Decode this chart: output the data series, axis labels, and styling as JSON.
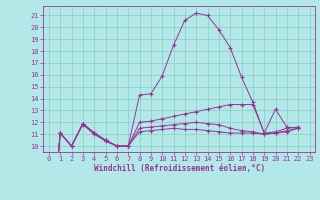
{
  "xlabel": "Windchill (Refroidissement éolien,°C)",
  "ylabel": "",
  "xlim": [
    -0.5,
    23.5
  ],
  "ylim": [
    9.5,
    21.8
  ],
  "yticks": [
    10,
    11,
    12,
    13,
    14,
    15,
    16,
    17,
    18,
    19,
    20,
    21
  ],
  "xticks": [
    0,
    1,
    2,
    3,
    4,
    5,
    6,
    7,
    8,
    9,
    10,
    11,
    12,
    13,
    14,
    15,
    16,
    17,
    18,
    19,
    20,
    21,
    22,
    23
  ],
  "bg_color": "#b3e8e8",
  "grid_color": "#88ccbb",
  "line_color": "#993399",
  "series": [
    [
      0,
      11.1,
      10.0,
      11.9,
      11.1,
      10.5,
      10.0,
      10.0,
      14.3,
      14.4,
      15.9,
      18.5,
      20.6,
      21.2,
      21.0,
      19.8,
      18.3,
      15.8,
      13.7,
      11.1,
      13.1,
      11.6,
      11.5,
      null
    ],
    [
      0,
      11.1,
      10.0,
      11.9,
      11.1,
      10.5,
      10.0,
      10.0,
      12.0,
      12.1,
      12.3,
      12.5,
      12.7,
      12.9,
      13.1,
      13.3,
      13.5,
      13.5,
      13.5,
      11.1,
      11.2,
      11.5,
      11.6,
      null
    ],
    [
      0,
      11.1,
      10.0,
      11.8,
      11.0,
      10.4,
      10.0,
      10.0,
      11.5,
      11.6,
      11.7,
      11.8,
      11.9,
      12.0,
      11.9,
      11.8,
      11.5,
      11.3,
      11.2,
      11.0,
      11.1,
      11.3,
      11.5,
      null
    ],
    [
      0,
      11.1,
      10.0,
      11.9,
      11.1,
      10.5,
      10.0,
      10.0,
      11.2,
      11.3,
      11.4,
      11.5,
      11.4,
      11.4,
      11.3,
      11.2,
      11.1,
      11.1,
      11.1,
      11.0,
      11.1,
      11.2,
      11.5,
      null
    ]
  ]
}
